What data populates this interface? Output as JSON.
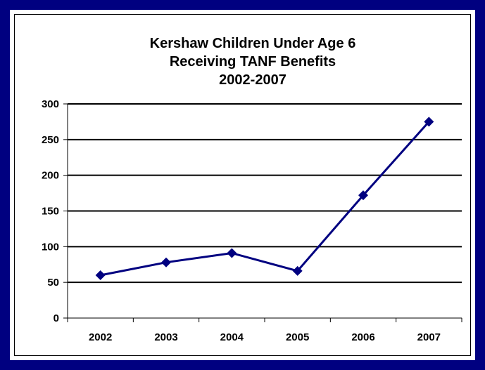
{
  "chart_data": {
    "type": "line",
    "title_lines": [
      "Kershaw Children Under Age 6",
      "Receiving TANF Benefits",
      "2002-2007"
    ],
    "categories": [
      "2002",
      "2003",
      "2004",
      "2005",
      "2006",
      "2007"
    ],
    "values": [
      60,
      78,
      91,
      66,
      172,
      275
    ],
    "ylim": [
      0,
      300
    ],
    "yticks": [
      "300",
      "250",
      "200",
      "150",
      "100",
      "50",
      "0"
    ],
    "grid": true,
    "line_color": "#000080",
    "marker": "diamond"
  },
  "colors": {
    "frame": "#000080",
    "series": "#000080",
    "gridline": "#000000"
  }
}
